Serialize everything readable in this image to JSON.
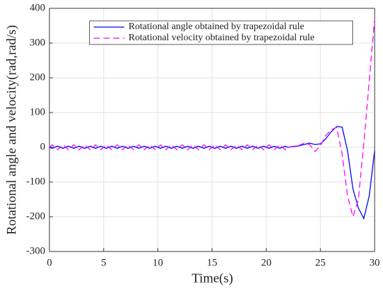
{
  "chart_data": {
    "type": "line",
    "xlabel": "Time(s)",
    "ylabel": "Rotational angle and velocity(rad,rad/s)",
    "xlim": [
      0,
      30
    ],
    "xticks": [
      0,
      5,
      10,
      15,
      20,
      25,
      30
    ],
    "ylim": [
      -300,
      400
    ],
    "yticks": [
      -300,
      -200,
      -100,
      0,
      100,
      200,
      300,
      400
    ],
    "grid": true,
    "legend": "north",
    "x": [
      0,
      0.25,
      0.5,
      0.75,
      1,
      1.25,
      1.5,
      1.75,
      2,
      2.25,
      2.5,
      2.75,
      3,
      3.25,
      3.5,
      3.75,
      4,
      4.25,
      4.5,
      4.75,
      5,
      5.25,
      5.5,
      5.75,
      6,
      6.25,
      6.5,
      6.75,
      7,
      7.25,
      7.5,
      7.75,
      8,
      8.25,
      8.5,
      8.75,
      9,
      9.25,
      9.5,
      9.75,
      10,
      10.25,
      10.5,
      10.75,
      11,
      11.25,
      11.5,
      11.75,
      12,
      12.25,
      12.5,
      12.75,
      13,
      13.25,
      13.5,
      13.75,
      14,
      14.25,
      14.5,
      14.75,
      15,
      15.25,
      15.5,
      15.75,
      16,
      16.25,
      16.5,
      16.75,
      17,
      17.25,
      17.5,
      17.75,
      18,
      18.25,
      18.5,
      18.75,
      19,
      19.25,
      19.5,
      19.75,
      20,
      20.25,
      20.5,
      20.75,
      21,
      21.25,
      21.5,
      21.75,
      22,
      22.5,
      23,
      23.5,
      24,
      24.5,
      25,
      25.5,
      26,
      26.5,
      27,
      27.5,
      28,
      28.5,
      29,
      29.5,
      30
    ],
    "series": [
      {
        "name": "Rotational angle obtained by trapezoidal rule",
        "color": "#0000ff",
        "line_style": "solid",
        "values": [
          0,
          -3,
          0,
          3,
          0,
          -3,
          0,
          3,
          0,
          -3,
          0,
          3,
          0,
          -3,
          0,
          3,
          0,
          -3,
          0,
          3,
          0,
          -3,
          0,
          3,
          0,
          -3,
          0,
          3,
          0,
          -3,
          0,
          3,
          0,
          -3,
          0,
          3,
          0,
          -3,
          0,
          3,
          0,
          -3,
          0,
          3,
          0,
          -3,
          0,
          3,
          0,
          -3,
          0,
          3,
          0,
          -3,
          0,
          3,
          0,
          -3,
          0,
          3,
          0,
          -3,
          0,
          3,
          0,
          -3,
          0,
          3,
          0,
          -3,
          0,
          3,
          0,
          -3,
          0,
          3,
          0,
          -3,
          0,
          3,
          0,
          -3,
          0,
          3,
          0,
          -3,
          0,
          3,
          0,
          2,
          4,
          8,
          12,
          8,
          10,
          25,
          45,
          60,
          58,
          -10,
          -120,
          -175,
          -205,
          -140,
          -10
        ]
      },
      {
        "name": "Rotational velocity obtained by trapezoidal rule",
        "color": "#ff00ff",
        "line_style": "dashed",
        "values": [
          0,
          7,
          0,
          -7,
          0,
          7,
          0,
          -7,
          0,
          7,
          0,
          -7,
          0,
          7,
          0,
          -7,
          0,
          7,
          0,
          -7,
          0,
          7,
          0,
          -7,
          0,
          7,
          0,
          -7,
          0,
          7,
          0,
          -7,
          0,
          7,
          0,
          -7,
          0,
          7,
          0,
          -7,
          0,
          7,
          0,
          -7,
          0,
          7,
          0,
          -7,
          0,
          7,
          0,
          -7,
          0,
          7,
          0,
          -7,
          0,
          7,
          0,
          -7,
          0,
          7,
          0,
          -7,
          0,
          7,
          0,
          -7,
          0,
          7,
          0,
          -7,
          0,
          7,
          0,
          -7,
          0,
          7,
          0,
          -7,
          0,
          7,
          0,
          -7,
          0,
          7,
          0,
          -7,
          0,
          3,
          5,
          12,
          8,
          -12,
          5,
          35,
          50,
          58,
          -20,
          -140,
          -200,
          -150,
          10,
          190,
          370
        ]
      }
    ]
  }
}
